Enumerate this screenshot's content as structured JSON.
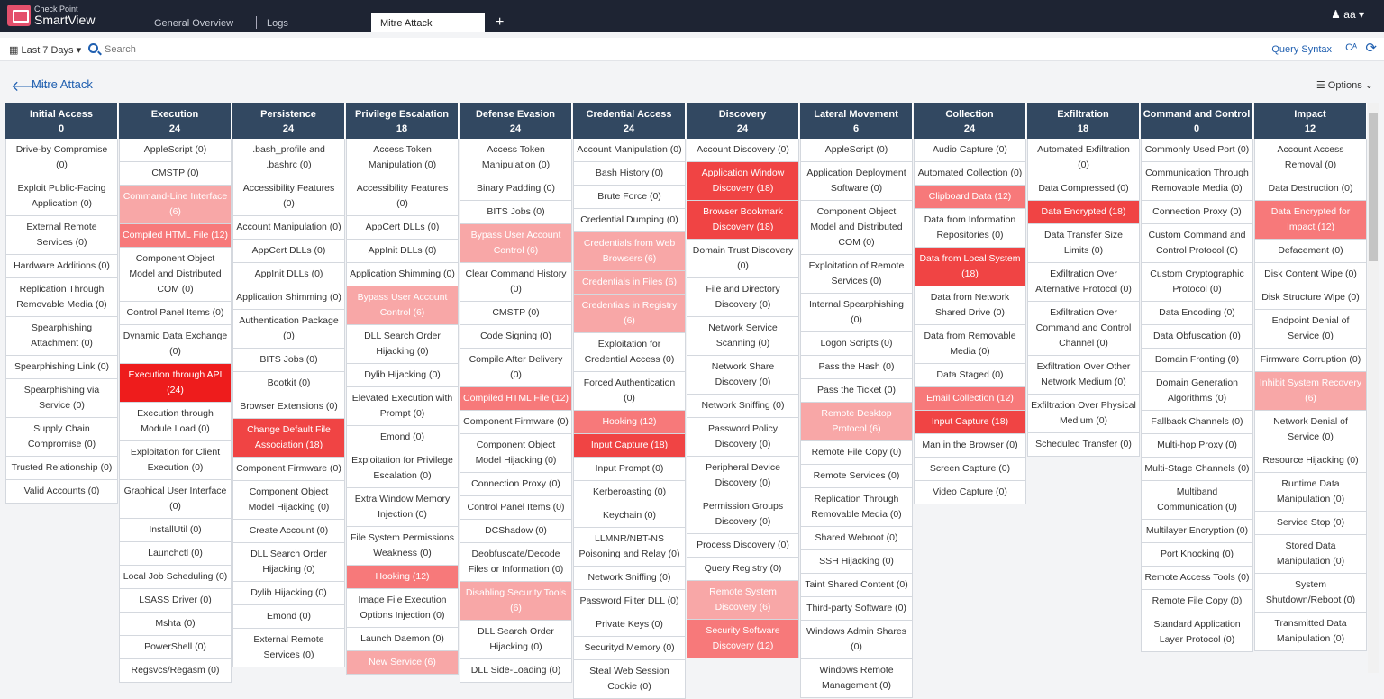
{
  "app": {
    "brand_top": "Check Point",
    "brand_name": "SmartView",
    "user": "aa"
  },
  "tabs": [
    {
      "label": "General Overview"
    },
    {
      "label": "Logs"
    },
    {
      "label": "Mitre Attack"
    }
  ],
  "toolbar": {
    "time_filter": "Last 7 Days",
    "search_placeholder": "Search",
    "query_syntax": "Query Syntax"
  },
  "page": {
    "title": "Mitre Attack",
    "options": "Options"
  },
  "colors": {
    "header": "#324861",
    "heat1": "#f8a7a7",
    "heat2": "#f7797a",
    "heat3": "#f04444",
    "heat4": "#ee1c1c"
  },
  "columns": [
    {
      "title": "Initial Access",
      "count": "0",
      "cells": [
        {
          "t": "Drive-by Compromise (0)",
          "h": 0
        },
        {
          "t": "Exploit Public-Facing Application (0)",
          "h": 0
        },
        {
          "t": "External Remote Services (0)",
          "h": 0
        },
        {
          "t": "Hardware Additions (0)",
          "h": 0
        },
        {
          "t": "Replication Through Removable Media (0)",
          "h": 0
        },
        {
          "t": "Spearphishing Attachment (0)",
          "h": 0
        },
        {
          "t": "Spearphishing Link (0)",
          "h": 0
        },
        {
          "t": "Spearphishing via Service (0)",
          "h": 0
        },
        {
          "t": "Supply Chain Compromise (0)",
          "h": 0
        },
        {
          "t": "Trusted Relationship (0)",
          "h": 0
        },
        {
          "t": "Valid Accounts (0)",
          "h": 0
        }
      ]
    },
    {
      "title": "Execution",
      "count": "24",
      "cells": [
        {
          "t": "AppleScript (0)",
          "h": 0
        },
        {
          "t": "CMSTP (0)",
          "h": 0
        },
        {
          "t": "Command-Line Interface (6)",
          "h": 1
        },
        {
          "t": "Compiled HTML File (12)",
          "h": 2
        },
        {
          "t": "Component Object Model and Distributed COM (0)",
          "h": 0
        },
        {
          "t": "Control Panel Items (0)",
          "h": 0
        },
        {
          "t": "Dynamic Data Exchange (0)",
          "h": 0
        },
        {
          "t": "Execution through API (24)",
          "h": 4
        },
        {
          "t": "Execution through Module Load (0)",
          "h": 0
        },
        {
          "t": "Exploitation for Client Execution (0)",
          "h": 0
        },
        {
          "t": "Graphical User Interface (0)",
          "h": 0
        },
        {
          "t": "InstallUtil (0)",
          "h": 0
        },
        {
          "t": "Launchctl (0)",
          "h": 0
        },
        {
          "t": "Local Job Scheduling (0)",
          "h": 0
        },
        {
          "t": "LSASS Driver (0)",
          "h": 0
        },
        {
          "t": "Mshta (0)",
          "h": 0
        },
        {
          "t": "PowerShell (0)",
          "h": 0
        },
        {
          "t": "Regsvcs/Regasm (0)",
          "h": 0
        }
      ]
    },
    {
      "title": "Persistence",
      "count": "24",
      "cells": [
        {
          "t": ".bash_profile and .bashrc (0)",
          "h": 0
        },
        {
          "t": "Accessibility Features (0)",
          "h": 0
        },
        {
          "t": "Account Manipulation (0)",
          "h": 0
        },
        {
          "t": "AppCert DLLs (0)",
          "h": 0
        },
        {
          "t": "AppInit DLLs (0)",
          "h": 0
        },
        {
          "t": "Application Shimming (0)",
          "h": 0
        },
        {
          "t": "Authentication Package (0)",
          "h": 0
        },
        {
          "t": "BITS Jobs (0)",
          "h": 0
        },
        {
          "t": "Bootkit (0)",
          "h": 0
        },
        {
          "t": "Browser Extensions (0)",
          "h": 0
        },
        {
          "t": "Change Default File Association (18)",
          "h": 3
        },
        {
          "t": "Component Firmware (0)",
          "h": 0
        },
        {
          "t": "Component Object Model Hijacking (0)",
          "h": 0
        },
        {
          "t": "Create Account (0)",
          "h": 0
        },
        {
          "t": "DLL Search Order Hijacking (0)",
          "h": 0
        },
        {
          "t": "Dylib Hijacking (0)",
          "h": 0
        },
        {
          "t": "Emond (0)",
          "h": 0
        },
        {
          "t": "External Remote Services (0)",
          "h": 0
        }
      ]
    },
    {
      "title": "Privilege Escalation",
      "count": "18",
      "cells": [
        {
          "t": "Access Token Manipulation (0)",
          "h": 0
        },
        {
          "t": "Accessibility Features (0)",
          "h": 0
        },
        {
          "t": "AppCert DLLs (0)",
          "h": 0
        },
        {
          "t": "AppInit DLLs (0)",
          "h": 0
        },
        {
          "t": "Application Shimming (0)",
          "h": 0
        },
        {
          "t": "Bypass User Account Control (6)",
          "h": 1
        },
        {
          "t": "DLL Search Order Hijacking (0)",
          "h": 0
        },
        {
          "t": "Dylib Hijacking (0)",
          "h": 0
        },
        {
          "t": "Elevated Execution with Prompt (0)",
          "h": 0
        },
        {
          "t": "Emond (0)",
          "h": 0
        },
        {
          "t": "Exploitation for Privilege Escalation (0)",
          "h": 0
        },
        {
          "t": "Extra Window Memory Injection (0)",
          "h": 0
        },
        {
          "t": "File System Permissions Weakness (0)",
          "h": 0
        },
        {
          "t": "Hooking (12)",
          "h": 2
        },
        {
          "t": "Image File Execution Options Injection (0)",
          "h": 0
        },
        {
          "t": "Launch Daemon (0)",
          "h": 0
        },
        {
          "t": "New Service (6)",
          "h": 1
        }
      ]
    },
    {
      "title": "Defense Evasion",
      "count": "24",
      "cells": [
        {
          "t": "Access Token Manipulation (0)",
          "h": 0
        },
        {
          "t": "Binary Padding (0)",
          "h": 0
        },
        {
          "t": "BITS Jobs (0)",
          "h": 0
        },
        {
          "t": "Bypass User Account Control (6)",
          "h": 1
        },
        {
          "t": "Clear Command History (0)",
          "h": 0
        },
        {
          "t": "CMSTP (0)",
          "h": 0
        },
        {
          "t": "Code Signing (0)",
          "h": 0
        },
        {
          "t": "Compile After Delivery (0)",
          "h": 0
        },
        {
          "t": "Compiled HTML File (12)",
          "h": 2
        },
        {
          "t": "Component Firmware (0)",
          "h": 0
        },
        {
          "t": "Component Object Model Hijacking (0)",
          "h": 0
        },
        {
          "t": "Connection Proxy (0)",
          "h": 0
        },
        {
          "t": "Control Panel Items (0)",
          "h": 0
        },
        {
          "t": "DCShadow (0)",
          "h": 0
        },
        {
          "t": "Deobfuscate/Decode Files or Information (0)",
          "h": 0
        },
        {
          "t": "Disabling Security Tools (6)",
          "h": 1
        },
        {
          "t": "DLL Search Order Hijacking (0)",
          "h": 0
        },
        {
          "t": "DLL Side-Loading (0)",
          "h": 0
        }
      ]
    },
    {
      "title": "Credential Access",
      "count": "24",
      "cells": [
        {
          "t": "Account Manipulation (0)",
          "h": 0
        },
        {
          "t": "Bash History (0)",
          "h": 0
        },
        {
          "t": "Brute Force (0)",
          "h": 0
        },
        {
          "t": "Credential Dumping (0)",
          "h": 0
        },
        {
          "t": "Credentials from Web Browsers (6)",
          "h": 1
        },
        {
          "t": "Credentials in Files (6)",
          "h": 1
        },
        {
          "t": "Credentials in Registry (6)",
          "h": 1
        },
        {
          "t": "Exploitation for Credential Access (0)",
          "h": 0
        },
        {
          "t": "Forced Authentication (0)",
          "h": 0
        },
        {
          "t": "Hooking (12)",
          "h": 2
        },
        {
          "t": "Input Capture (18)",
          "h": 3
        },
        {
          "t": "Input Prompt (0)",
          "h": 0
        },
        {
          "t": "Kerberoasting (0)",
          "h": 0
        },
        {
          "t": "Keychain (0)",
          "h": 0
        },
        {
          "t": "LLMNR/NBT-NS Poisoning and Relay (0)",
          "h": 0
        },
        {
          "t": "Network Sniffing (0)",
          "h": 0
        },
        {
          "t": "Password Filter DLL (0)",
          "h": 0
        },
        {
          "t": "Private Keys (0)",
          "h": 0
        },
        {
          "t": "Securityd Memory (0)",
          "h": 0
        },
        {
          "t": "Steal Web Session Cookie (0)",
          "h": 0
        }
      ]
    },
    {
      "title": "Discovery",
      "count": "24",
      "cells": [
        {
          "t": "Account Discovery (0)",
          "h": 0
        },
        {
          "t": "Application Window Discovery (18)",
          "h": 3
        },
        {
          "t": "Browser Bookmark Discovery (18)",
          "h": 3
        },
        {
          "t": "Domain Trust Discovery (0)",
          "h": 0
        },
        {
          "t": "File and Directory Discovery (0)",
          "h": 0
        },
        {
          "t": "Network Service Scanning (0)",
          "h": 0
        },
        {
          "t": "Network Share Discovery (0)",
          "h": 0
        },
        {
          "t": "Network Sniffing (0)",
          "h": 0
        },
        {
          "t": "Password Policy Discovery (0)",
          "h": 0
        },
        {
          "t": "Peripheral Device Discovery (0)",
          "h": 0
        },
        {
          "t": "Permission Groups Discovery (0)",
          "h": 0
        },
        {
          "t": "Process Discovery (0)",
          "h": 0
        },
        {
          "t": "Query Registry (0)",
          "h": 0
        },
        {
          "t": "Remote System Discovery (6)",
          "h": 1
        },
        {
          "t": "Security Software Discovery (12)",
          "h": 2
        }
      ]
    },
    {
      "title": "Lateral Movement",
      "count": "6",
      "cells": [
        {
          "t": "AppleScript (0)",
          "h": 0
        },
        {
          "t": "Application Deployment Software (0)",
          "h": 0
        },
        {
          "t": "Component Object Model and Distributed COM (0)",
          "h": 0
        },
        {
          "t": "Exploitation of Remote Services (0)",
          "h": 0
        },
        {
          "t": "Internal Spearphishing (0)",
          "h": 0
        },
        {
          "t": "Logon Scripts (0)",
          "h": 0
        },
        {
          "t": "Pass the Hash (0)",
          "h": 0
        },
        {
          "t": "Pass the Ticket (0)",
          "h": 0
        },
        {
          "t": "Remote Desktop Protocol (6)",
          "h": 1
        },
        {
          "t": "Remote File Copy (0)",
          "h": 0
        },
        {
          "t": "Remote Services (0)",
          "h": 0
        },
        {
          "t": "Replication Through Removable Media (0)",
          "h": 0
        },
        {
          "t": "Shared Webroot (0)",
          "h": 0
        },
        {
          "t": "SSH Hijacking (0)",
          "h": 0
        },
        {
          "t": "Taint Shared Content (0)",
          "h": 0
        },
        {
          "t": "Third-party Software (0)",
          "h": 0
        },
        {
          "t": "Windows Admin Shares (0)",
          "h": 0
        },
        {
          "t": "Windows Remote Management (0)",
          "h": 0
        }
      ]
    },
    {
      "title": "Collection",
      "count": "24",
      "cells": [
        {
          "t": "Audio Capture (0)",
          "h": 0
        },
        {
          "t": "Automated Collection (0)",
          "h": 0
        },
        {
          "t": "Clipboard Data (12)",
          "h": 2
        },
        {
          "t": "Data from Information Repositories (0)",
          "h": 0
        },
        {
          "t": "Data from Local System (18)",
          "h": 3
        },
        {
          "t": "Data from Network Shared Drive (0)",
          "h": 0
        },
        {
          "t": "Data from Removable Media (0)",
          "h": 0
        },
        {
          "t": "Data Staged (0)",
          "h": 0
        },
        {
          "t": "Email Collection (12)",
          "h": 2
        },
        {
          "t": "Input Capture (18)",
          "h": 3
        },
        {
          "t": "Man in the Browser (0)",
          "h": 0
        },
        {
          "t": "Screen Capture (0)",
          "h": 0
        },
        {
          "t": "Video Capture (0)",
          "h": 0
        }
      ]
    },
    {
      "title": "Exfiltration",
      "count": "18",
      "cells": [
        {
          "t": "Automated Exfiltration (0)",
          "h": 0
        },
        {
          "t": "Data Compressed (0)",
          "h": 0
        },
        {
          "t": "Data Encrypted (18)",
          "h": 3
        },
        {
          "t": "Data Transfer Size Limits (0)",
          "h": 0
        },
        {
          "t": "Exfiltration Over Alternative Protocol (0)",
          "h": 0
        },
        {
          "t": "Exfiltration Over Command and Control Channel (0)",
          "h": 0
        },
        {
          "t": "Exfiltration Over Other Network Medium (0)",
          "h": 0
        },
        {
          "t": "Exfiltration Over Physical Medium (0)",
          "h": 0
        },
        {
          "t": "Scheduled Transfer (0)",
          "h": 0
        }
      ]
    },
    {
      "title": "Command and Control",
      "count": "0",
      "cells": [
        {
          "t": "Commonly Used Port (0)",
          "h": 0
        },
        {
          "t": "Communication Through Removable Media (0)",
          "h": 0
        },
        {
          "t": "Connection Proxy (0)",
          "h": 0
        },
        {
          "t": "Custom Command and Control Protocol (0)",
          "h": 0
        },
        {
          "t": "Custom Cryptographic Protocol (0)",
          "h": 0
        },
        {
          "t": "Data Encoding (0)",
          "h": 0
        },
        {
          "t": "Data Obfuscation (0)",
          "h": 0
        },
        {
          "t": "Domain Fronting (0)",
          "h": 0
        },
        {
          "t": "Domain Generation Algorithms (0)",
          "h": 0
        },
        {
          "t": "Fallback Channels (0)",
          "h": 0
        },
        {
          "t": "Multi-hop Proxy (0)",
          "h": 0
        },
        {
          "t": "Multi-Stage Channels (0)",
          "h": 0
        },
        {
          "t": "Multiband Communication (0)",
          "h": 0
        },
        {
          "t": "Multilayer Encryption (0)",
          "h": 0
        },
        {
          "t": "Port Knocking (0)",
          "h": 0
        },
        {
          "t": "Remote Access Tools (0)",
          "h": 0
        },
        {
          "t": "Remote File Copy (0)",
          "h": 0
        },
        {
          "t": "Standard Application Layer Protocol (0)",
          "h": 0
        }
      ]
    },
    {
      "title": "Impact",
      "count": "12",
      "cells": [
        {
          "t": "Account Access Removal (0)",
          "h": 0
        },
        {
          "t": "Data Destruction (0)",
          "h": 0
        },
        {
          "t": "Data Encrypted for Impact (12)",
          "h": 2
        },
        {
          "t": "Defacement (0)",
          "h": 0
        },
        {
          "t": "Disk Content Wipe (0)",
          "h": 0
        },
        {
          "t": "Disk Structure Wipe (0)",
          "h": 0
        },
        {
          "t": "Endpoint Denial of Service (0)",
          "h": 0
        },
        {
          "t": "Firmware Corruption (0)",
          "h": 0
        },
        {
          "t": "Inhibit System Recovery (6)",
          "h": 1
        },
        {
          "t": "Network Denial of Service (0)",
          "h": 0
        },
        {
          "t": "Resource Hijacking (0)",
          "h": 0
        },
        {
          "t": "Runtime Data Manipulation (0)",
          "h": 0
        },
        {
          "t": "Service Stop (0)",
          "h": 0
        },
        {
          "t": "Stored Data Manipulation (0)",
          "h": 0
        },
        {
          "t": "System Shutdown/Reboot (0)",
          "h": 0
        },
        {
          "t": "Transmitted Data Manipulation (0)",
          "h": 0
        }
      ]
    }
  ]
}
